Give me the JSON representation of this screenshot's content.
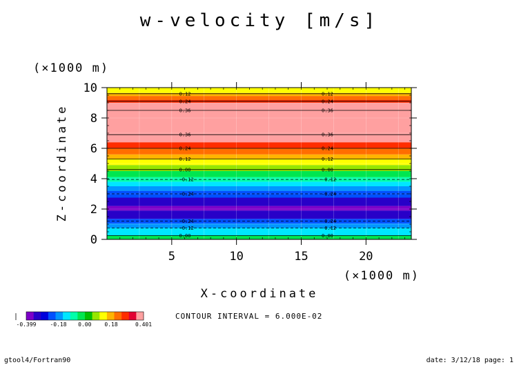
{
  "chart_data": {
    "type": "heatmap",
    "title": "w-velocity [m/s]",
    "xlabel": "X-coordinate",
    "ylabel": "Z-coordinate",
    "x_unit": "(×1000 m)",
    "y_unit": "(×1000 m)",
    "xlim": [
      0,
      23.5
    ],
    "ylim": [
      0,
      10
    ],
    "x_ticks": [
      "5",
      "10",
      "15",
      "20"
    ],
    "y_ticks": [
      "0",
      "2",
      "4",
      "6",
      "8",
      "10"
    ],
    "x_tick_values": [
      5,
      10,
      15,
      20
    ],
    "y_tick_values": [
      0,
      2,
      4,
      6,
      8,
      10
    ],
    "grid": true,
    "bands": [
      {
        "z0": 0.0,
        "z1": 0.25,
        "value": 0.0
      },
      {
        "z0": 0.25,
        "z1": 0.75,
        "value": -0.12
      },
      {
        "z0": 0.75,
        "z1": 1.05,
        "value": -0.18
      },
      {
        "z0": 1.05,
        "z1": 1.35,
        "value": -0.24
      },
      {
        "z0": 1.35,
        "z1": 1.9,
        "value": -0.3
      },
      {
        "z0": 1.9,
        "z1": 2.2,
        "value": -0.36
      },
      {
        "z0": 2.2,
        "z1": 2.75,
        "value": -0.3
      },
      {
        "z0": 2.75,
        "z1": 3.2,
        "value": -0.24
      },
      {
        "z0": 3.2,
        "z1": 3.5,
        "value": -0.18
      },
      {
        "z0": 3.5,
        "z1": 3.8,
        "value": -0.12
      },
      {
        "z0": 3.8,
        "z1": 4.1,
        "value": -0.06
      },
      {
        "z0": 4.1,
        "z1": 4.5,
        "value": 0.0
      },
      {
        "z0": 4.5,
        "z1": 4.9,
        "value": 0.06
      },
      {
        "z0": 4.9,
        "z1": 5.3,
        "value": 0.12
      },
      {
        "z0": 5.3,
        "z1": 5.6,
        "value": 0.18
      },
      {
        "z0": 5.6,
        "z1": 6.0,
        "value": 0.24
      },
      {
        "z0": 6.0,
        "z1": 6.4,
        "value": 0.3
      },
      {
        "z0": 6.4,
        "z1": 6.9,
        "value": 0.36
      },
      {
        "z0": 6.9,
        "z1": 8.5,
        "value": 0.4
      },
      {
        "z0": 8.5,
        "z1": 9.0,
        "value": 0.36
      },
      {
        "z0": 9.0,
        "z1": 9.2,
        "value": 0.3
      },
      {
        "z0": 9.2,
        "z1": 9.45,
        "value": 0.24
      },
      {
        "z0": 9.45,
        "z1": 9.65,
        "value": 0.18
      },
      {
        "z0": 9.65,
        "z1": 10.0,
        "value": 0.12
      }
    ],
    "contour_lines": [
      {
        "z": 0.25,
        "label": "0.00",
        "dashed": false
      },
      {
        "z": 0.75,
        "label": "-0.12",
        "dashed": true
      },
      {
        "z": 1.2,
        "label": "-0.24",
        "dashed": true
      },
      {
        "z": 3.0,
        "label": "-0.24",
        "dashed": true
      },
      {
        "z": 3.95,
        "label": "-0.12",
        "dashed": true
      },
      {
        "z": 4.6,
        "label": "0.00",
        "dashed": false
      },
      {
        "z": 5.3,
        "label": "0.12",
        "dashed": false
      },
      {
        "z": 6.0,
        "label": "0.24",
        "dashed": false
      },
      {
        "z": 6.9,
        "label": "0.36",
        "dashed": false
      },
      {
        "z": 8.5,
        "label": "0.36",
        "dashed": false
      },
      {
        "z": 9.1,
        "label": "0.24",
        "dashed": false
      },
      {
        "z": 9.6,
        "label": "0.12",
        "dashed": false
      }
    ],
    "contour_label_x": [
      6,
      17
    ]
  },
  "colorbar": {
    "labels": [
      "-0.399",
      "-0.18",
      "0.00",
      "0.18",
      "0.401"
    ],
    "label_values": [
      -0.399,
      -0.18,
      0.0,
      0.18,
      0.401
    ],
    "colors": [
      "#7d00c8",
      "#2800c8",
      "#0000dc",
      "#0050ff",
      "#0096ff",
      "#00e6ff",
      "#00ffaa",
      "#00e650",
      "#00be00",
      "#96e600",
      "#ffff00",
      "#ffb400",
      "#ff6e00",
      "#ff2d00",
      "#e10032",
      "#ffa0a0"
    ]
  },
  "contour_interval": "CONTOUR INTERVAL = 6.000E-02",
  "footer": {
    "left": "gtool4/Fortran90",
    "right": "date: 3/12/18 page: 1"
  }
}
